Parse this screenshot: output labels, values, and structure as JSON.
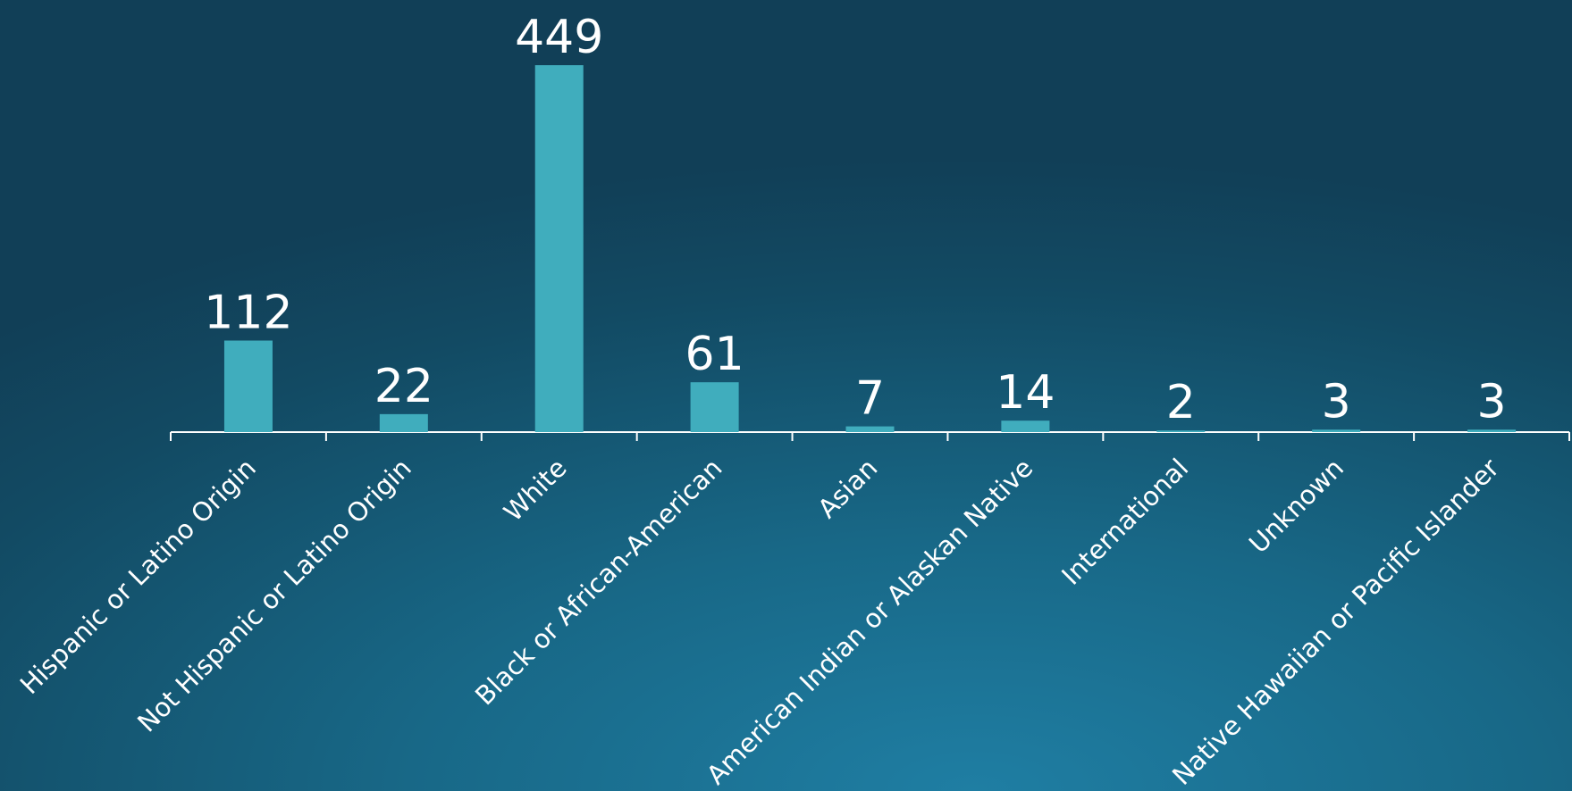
{
  "chart_data": {
    "type": "bar",
    "categories": [
      "Hispanic or Latino Origin",
      "Not Hispanic or Latino Origin",
      "White",
      "Black or African-American",
      "Asian",
      "American Indian or Alaskan Native",
      "International",
      "Unknown",
      "Native Hawaiian or Pacific Islander"
    ],
    "values": [
      112,
      22,
      449,
      61,
      7,
      14,
      2,
      3,
      3
    ],
    "color": "#40adbd"
  }
}
